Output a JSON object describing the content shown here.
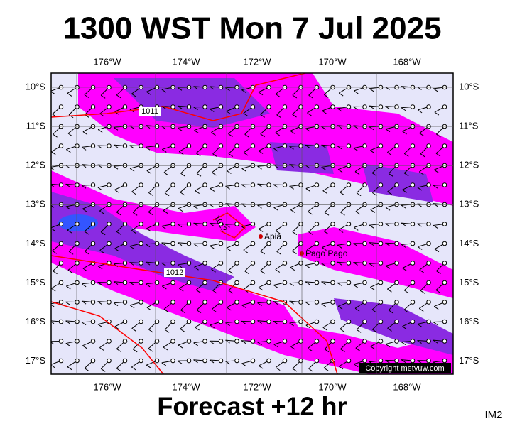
{
  "header": {
    "title": "1300 WST Mon 7 Jul 2025"
  },
  "map": {
    "lon_labels": [
      "176°W",
      "174°W",
      "172°W",
      "170°W",
      "168°W"
    ],
    "lat_labels": [
      "10°S",
      "11°S",
      "12°S",
      "13°S",
      "14°S",
      "15°S",
      "16°S",
      "17°S"
    ],
    "isobar_labels": [
      "1011",
      "1012",
      "1012"
    ],
    "places": [
      "Apia",
      "Pago Pago"
    ],
    "copyright": "Copyright metvuw.com"
  },
  "footer": {
    "forecast": "Forecast +12 hr",
    "code": "IM2"
  }
}
